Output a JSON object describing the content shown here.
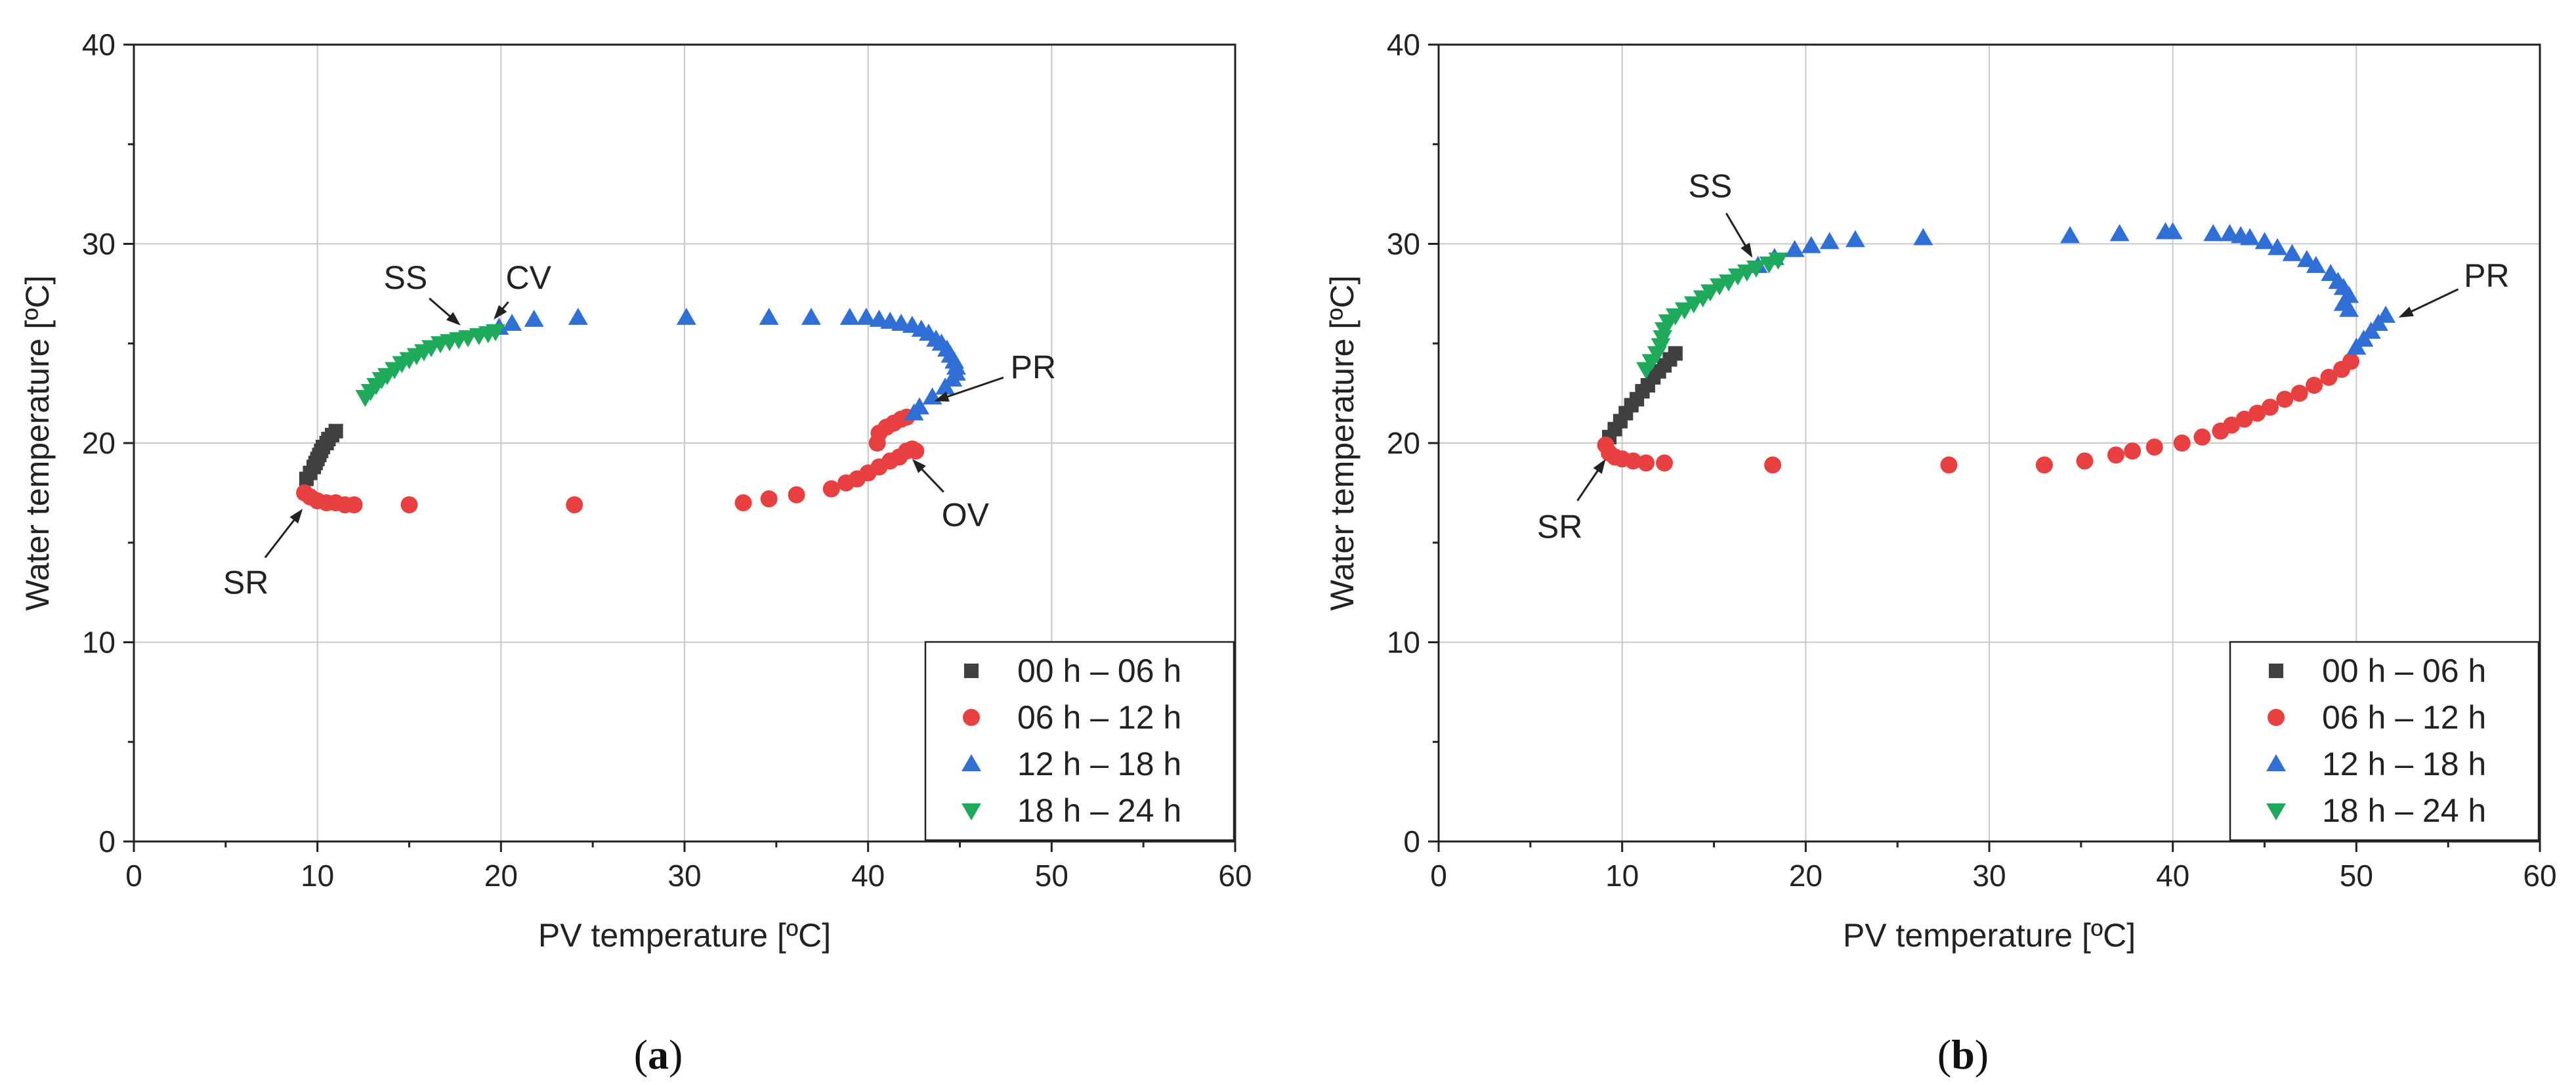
{
  "chart_data": [
    {
      "type": "scatter",
      "panel_label": {
        "open": "(",
        "letter": "a",
        "close": ")"
      },
      "xlabel": "PV temperature [ºC]",
      "ylabel": "Water temperature [ºC]",
      "xlim": [
        0,
        60
      ],
      "ylim": [
        0,
        40
      ],
      "xticks": [
        0,
        10,
        20,
        30,
        40,
        50,
        60
      ],
      "yticks": [
        0,
        10,
        20,
        30,
        40
      ],
      "grid": true,
      "legend_position": "bottom-right",
      "series": [
        {
          "name": "00 h – 06 h",
          "marker": "square",
          "color": "#404040",
          "points": [
            [
              9.4,
              18.2
            ],
            [
              9.6,
              18.5
            ],
            [
              9.8,
              18.8
            ],
            [
              9.9,
              19.0
            ],
            [
              10.0,
              19.2
            ],
            [
              10.1,
              19.4
            ],
            [
              10.2,
              19.6
            ],
            [
              10.3,
              19.8
            ],
            [
              10.5,
              20.0
            ],
            [
              10.6,
              20.2
            ],
            [
              10.8,
              20.4
            ],
            [
              11.0,
              20.6
            ]
          ]
        },
        {
          "name": "06 h – 12 h",
          "marker": "circle",
          "color": "#e84040",
          "points": [
            [
              9.3,
              17.5
            ],
            [
              9.6,
              17.3
            ],
            [
              10.0,
              17.1
            ],
            [
              10.5,
              17.0
            ],
            [
              11.0,
              17.0
            ],
            [
              11.5,
              16.9
            ],
            [
              12.0,
              16.9
            ],
            [
              15.0,
              16.9
            ],
            [
              24.0,
              16.9
            ],
            [
              33.2,
              17.0
            ],
            [
              34.6,
              17.2
            ],
            [
              36.1,
              17.4
            ],
            [
              38.0,
              17.7
            ],
            [
              38.8,
              18.0
            ],
            [
              39.4,
              18.2
            ],
            [
              40.0,
              18.5
            ],
            [
              40.6,
              18.8
            ],
            [
              41.2,
              19.1
            ],
            [
              41.7,
              19.3
            ],
            [
              42.1,
              19.6
            ],
            [
              42.4,
              19.7
            ],
            [
              42.6,
              19.6
            ],
            [
              40.5,
              20.0
            ],
            [
              40.6,
              20.5
            ],
            [
              41.0,
              20.8
            ],
            [
              41.4,
              21.0
            ],
            [
              41.8,
              21.2
            ],
            [
              42.1,
              21.3
            ]
          ]
        },
        {
          "name": "12 h – 18 h",
          "marker": "triangle-up",
          "color": "#2f6fd6",
          "points": [
            [
              19.9,
              25.8
            ],
            [
              20.6,
              26.0
            ],
            [
              21.8,
              26.2
            ],
            [
              24.2,
              26.3
            ],
            [
              30.1,
              26.3
            ],
            [
              34.6,
              26.3
            ],
            [
              36.9,
              26.3
            ],
            [
              39.0,
              26.3
            ],
            [
              39.9,
              26.3
            ],
            [
              40.6,
              26.2
            ],
            [
              41.2,
              26.1
            ],
            [
              41.8,
              26.0
            ],
            [
              42.4,
              25.9
            ],
            [
              42.9,
              25.7
            ],
            [
              43.3,
              25.5
            ],
            [
              43.7,
              25.2
            ],
            [
              44.0,
              25.0
            ],
            [
              44.3,
              24.7
            ],
            [
              44.5,
              24.4
            ],
            [
              44.7,
              24.1
            ],
            [
              44.8,
              23.8
            ],
            [
              44.8,
              23.5
            ],
            [
              44.6,
              23.2
            ],
            [
              44.2,
              22.8
            ],
            [
              43.5,
              22.3
            ],
            [
              42.8,
              21.8
            ],
            [
              42.5,
              21.5
            ]
          ]
        },
        {
          "name": "18 h – 24 h",
          "marker": "triangle-down",
          "color": "#1daa5a",
          "points": [
            [
              12.6,
              22.3
            ],
            [
              12.9,
              22.6
            ],
            [
              13.2,
              22.9
            ],
            [
              13.5,
              23.2
            ],
            [
              13.8,
              23.4
            ],
            [
              14.2,
              23.7
            ],
            [
              14.6,
              24.0
            ],
            [
              15.0,
              24.2
            ],
            [
              15.4,
              24.4
            ],
            [
              15.8,
              24.6
            ],
            [
              16.2,
              24.8
            ],
            [
              16.7,
              25.0
            ],
            [
              17.2,
              25.1
            ],
            [
              17.7,
              25.2
            ],
            [
              18.2,
              25.3
            ],
            [
              18.8,
              25.4
            ],
            [
              19.3,
              25.5
            ],
            [
              19.7,
              25.6
            ]
          ]
        }
      ],
      "annotations": [
        {
          "text": "SR",
          "point": [
            9.2,
            16.7
          ],
          "label": [
            6.1,
            13.0
          ]
        },
        {
          "text": "SS",
          "point": [
            17.8,
            25.9
          ],
          "label": [
            14.8,
            28.3
          ]
        },
        {
          "text": "CV",
          "point": [
            19.6,
            26.2
          ],
          "label": [
            21.5,
            28.3
          ]
        },
        {
          "text": "PR",
          "point": [
            43.6,
            22.1
          ],
          "label": [
            49.0,
            23.8
          ]
        },
        {
          "text": "OV",
          "point": [
            42.4,
            19.2
          ],
          "label": [
            45.3,
            16.4
          ]
        }
      ]
    },
    {
      "type": "scatter",
      "panel_label": {
        "open": "(",
        "letter": "b",
        "close": ")"
      },
      "xlabel": "PV temperature [ºC]",
      "ylabel": "Water temperature [ºC]",
      "xlim": [
        0,
        60
      ],
      "ylim": [
        0,
        40
      ],
      "xticks": [
        0,
        10,
        20,
        30,
        40,
        50,
        60
      ],
      "yticks": [
        0,
        10,
        20,
        30,
        40
      ],
      "grid": true,
      "legend_position": "bottom-right",
      "series": [
        {
          "name": "00 h – 06 h",
          "marker": "square",
          "color": "#404040",
          "points": [
            [
              9.3,
              20.3
            ],
            [
              9.6,
              20.7
            ],
            [
              9.9,
              21.1
            ],
            [
              10.2,
              21.5
            ],
            [
              10.5,
              21.9
            ],
            [
              10.8,
              22.2
            ],
            [
              11.1,
              22.6
            ],
            [
              11.4,
              22.9
            ],
            [
              11.7,
              23.3
            ],
            [
              12.0,
              23.6
            ],
            [
              12.3,
              23.9
            ],
            [
              12.6,
              24.2
            ],
            [
              12.9,
              24.5
            ]
          ]
        },
        {
          "name": "06 h – 12 h",
          "marker": "circle",
          "color": "#e84040",
          "points": [
            [
              9.1,
              19.9
            ],
            [
              9.3,
              19.5
            ],
            [
              9.6,
              19.3
            ],
            [
              10.0,
              19.2
            ],
            [
              10.6,
              19.1
            ],
            [
              11.3,
              19.0
            ],
            [
              12.3,
              19.0
            ],
            [
              18.2,
              18.9
            ],
            [
              27.8,
              18.9
            ],
            [
              33.0,
              18.9
            ],
            [
              35.2,
              19.1
            ],
            [
              36.9,
              19.4
            ],
            [
              37.8,
              19.6
            ],
            [
              39.0,
              19.8
            ],
            [
              40.5,
              20.0
            ],
            [
              41.6,
              20.3
            ],
            [
              42.6,
              20.6
            ],
            [
              43.2,
              20.9
            ],
            [
              43.9,
              21.2
            ],
            [
              44.6,
              21.5
            ],
            [
              45.3,
              21.8
            ],
            [
              46.1,
              22.2
            ],
            [
              46.9,
              22.5
            ],
            [
              47.7,
              22.9
            ],
            [
              48.5,
              23.3
            ],
            [
              49.2,
              23.7
            ],
            [
              49.7,
              24.1
            ]
          ]
        },
        {
          "name": "12 h – 18 h",
          "marker": "triangle-up",
          "color": "#2f6fd6",
          "points": [
            [
              17.4,
              28.9
            ],
            [
              18.3,
              29.3
            ],
            [
              19.4,
              29.7
            ],
            [
              20.3,
              29.9
            ],
            [
              21.3,
              30.1
            ],
            [
              22.7,
              30.2
            ],
            [
              26.4,
              30.3
            ],
            [
              34.4,
              30.4
            ],
            [
              37.1,
              30.5
            ],
            [
              39.6,
              30.6
            ],
            [
              40.0,
              30.6
            ],
            [
              42.2,
              30.5
            ],
            [
              43.1,
              30.5
            ],
            [
              43.7,
              30.4
            ],
            [
              44.2,
              30.3
            ],
            [
              45.0,
              30.1
            ],
            [
              45.7,
              29.8
            ],
            [
              46.5,
              29.5
            ],
            [
              47.3,
              29.2
            ],
            [
              47.8,
              28.9
            ],
            [
              48.6,
              28.5
            ],
            [
              49.0,
              28.1
            ],
            [
              49.3,
              27.8
            ],
            [
              49.6,
              27.4
            ],
            [
              49.3,
              27.0
            ],
            [
              49.6,
              26.7
            ],
            [
              51.6,
              26.4
            ],
            [
              51.2,
              26.0
            ],
            [
              50.8,
              25.6
            ],
            [
              50.4,
              25.2
            ],
            [
              50.0,
              24.8
            ]
          ]
        },
        {
          "name": "18 h – 24 h",
          "marker": "triangle-down",
          "color": "#1daa5a",
          "points": [
            [
              11.3,
              23.7
            ],
            [
              11.6,
              24.1
            ],
            [
              11.9,
              24.5
            ],
            [
              12.1,
              24.9
            ],
            [
              12.2,
              25.3
            ],
            [
              12.3,
              25.7
            ],
            [
              12.5,
              26.1
            ],
            [
              12.9,
              26.4
            ],
            [
              13.4,
              26.7
            ],
            [
              13.9,
              27.0
            ],
            [
              14.4,
              27.3
            ],
            [
              14.8,
              27.6
            ],
            [
              15.3,
              27.9
            ],
            [
              15.8,
              28.1
            ],
            [
              16.3,
              28.4
            ],
            [
              16.8,
              28.6
            ],
            [
              17.3,
              28.8
            ],
            [
              18.0,
              29.0
            ],
            [
              18.5,
              29.2
            ]
          ]
        }
      ],
      "annotations": [
        {
          "text": "SR",
          "point": [
            9.1,
            19.2
          ],
          "label": [
            6.6,
            15.8
          ]
        },
        {
          "text": "SS",
          "point": [
            17.1,
            29.3
          ],
          "label": [
            14.8,
            32.9
          ]
        },
        {
          "text": "PR",
          "point": [
            52.3,
            26.3
          ],
          "label": [
            57.1,
            28.4
          ]
        }
      ]
    }
  ]
}
